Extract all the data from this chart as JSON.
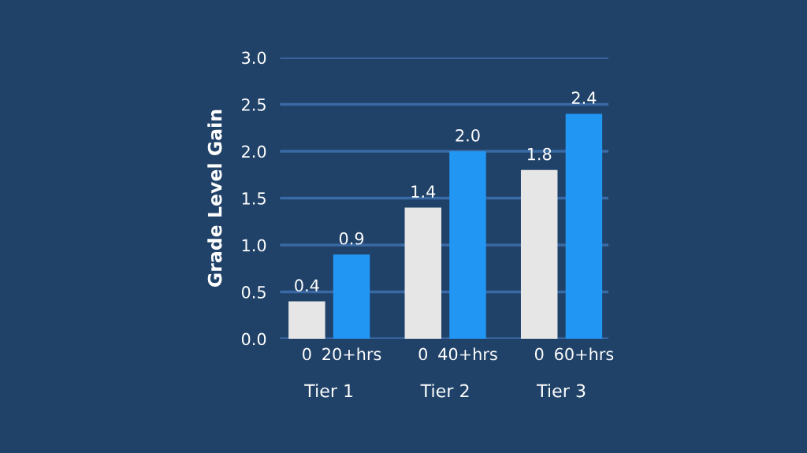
{
  "chart_data": {
    "type": "bar",
    "ylabel": "Grade Level Gain",
    "categories": [
      "0",
      "20+hrs",
      "0",
      "40+hrs",
      "0",
      "60+hrs"
    ],
    "values": [
      0.4,
      0.9,
      1.4,
      2.0,
      1.8,
      2.4
    ],
    "colors": [
      "#e6e6e6",
      "#2196f3",
      "#e6e6e6",
      "#2196f3",
      "#e6e6e6",
      "#2196f3"
    ],
    "ylim": [
      0,
      3
    ],
    "yticks": [
      {
        "value": 0,
        "label": "0.0"
      },
      {
        "value": 0.5,
        "label": "0.5"
      },
      {
        "value": 1,
        "label": "1.0"
      },
      {
        "value": 1.5,
        "label": "1.5"
      },
      {
        "value": 2,
        "label": "2.0"
      },
      {
        "value": 2.5,
        "label": "2.5"
      },
      {
        "value": 3,
        "label": "3.0"
      }
    ],
    "value_labels": [
      "0.4",
      "0.9",
      "1.4",
      "2.0",
      "1.8",
      "2.4"
    ],
    "grid": "y",
    "annotations": [
      "Tier 1",
      "Tier 2",
      "Tier 3"
    ]
  }
}
